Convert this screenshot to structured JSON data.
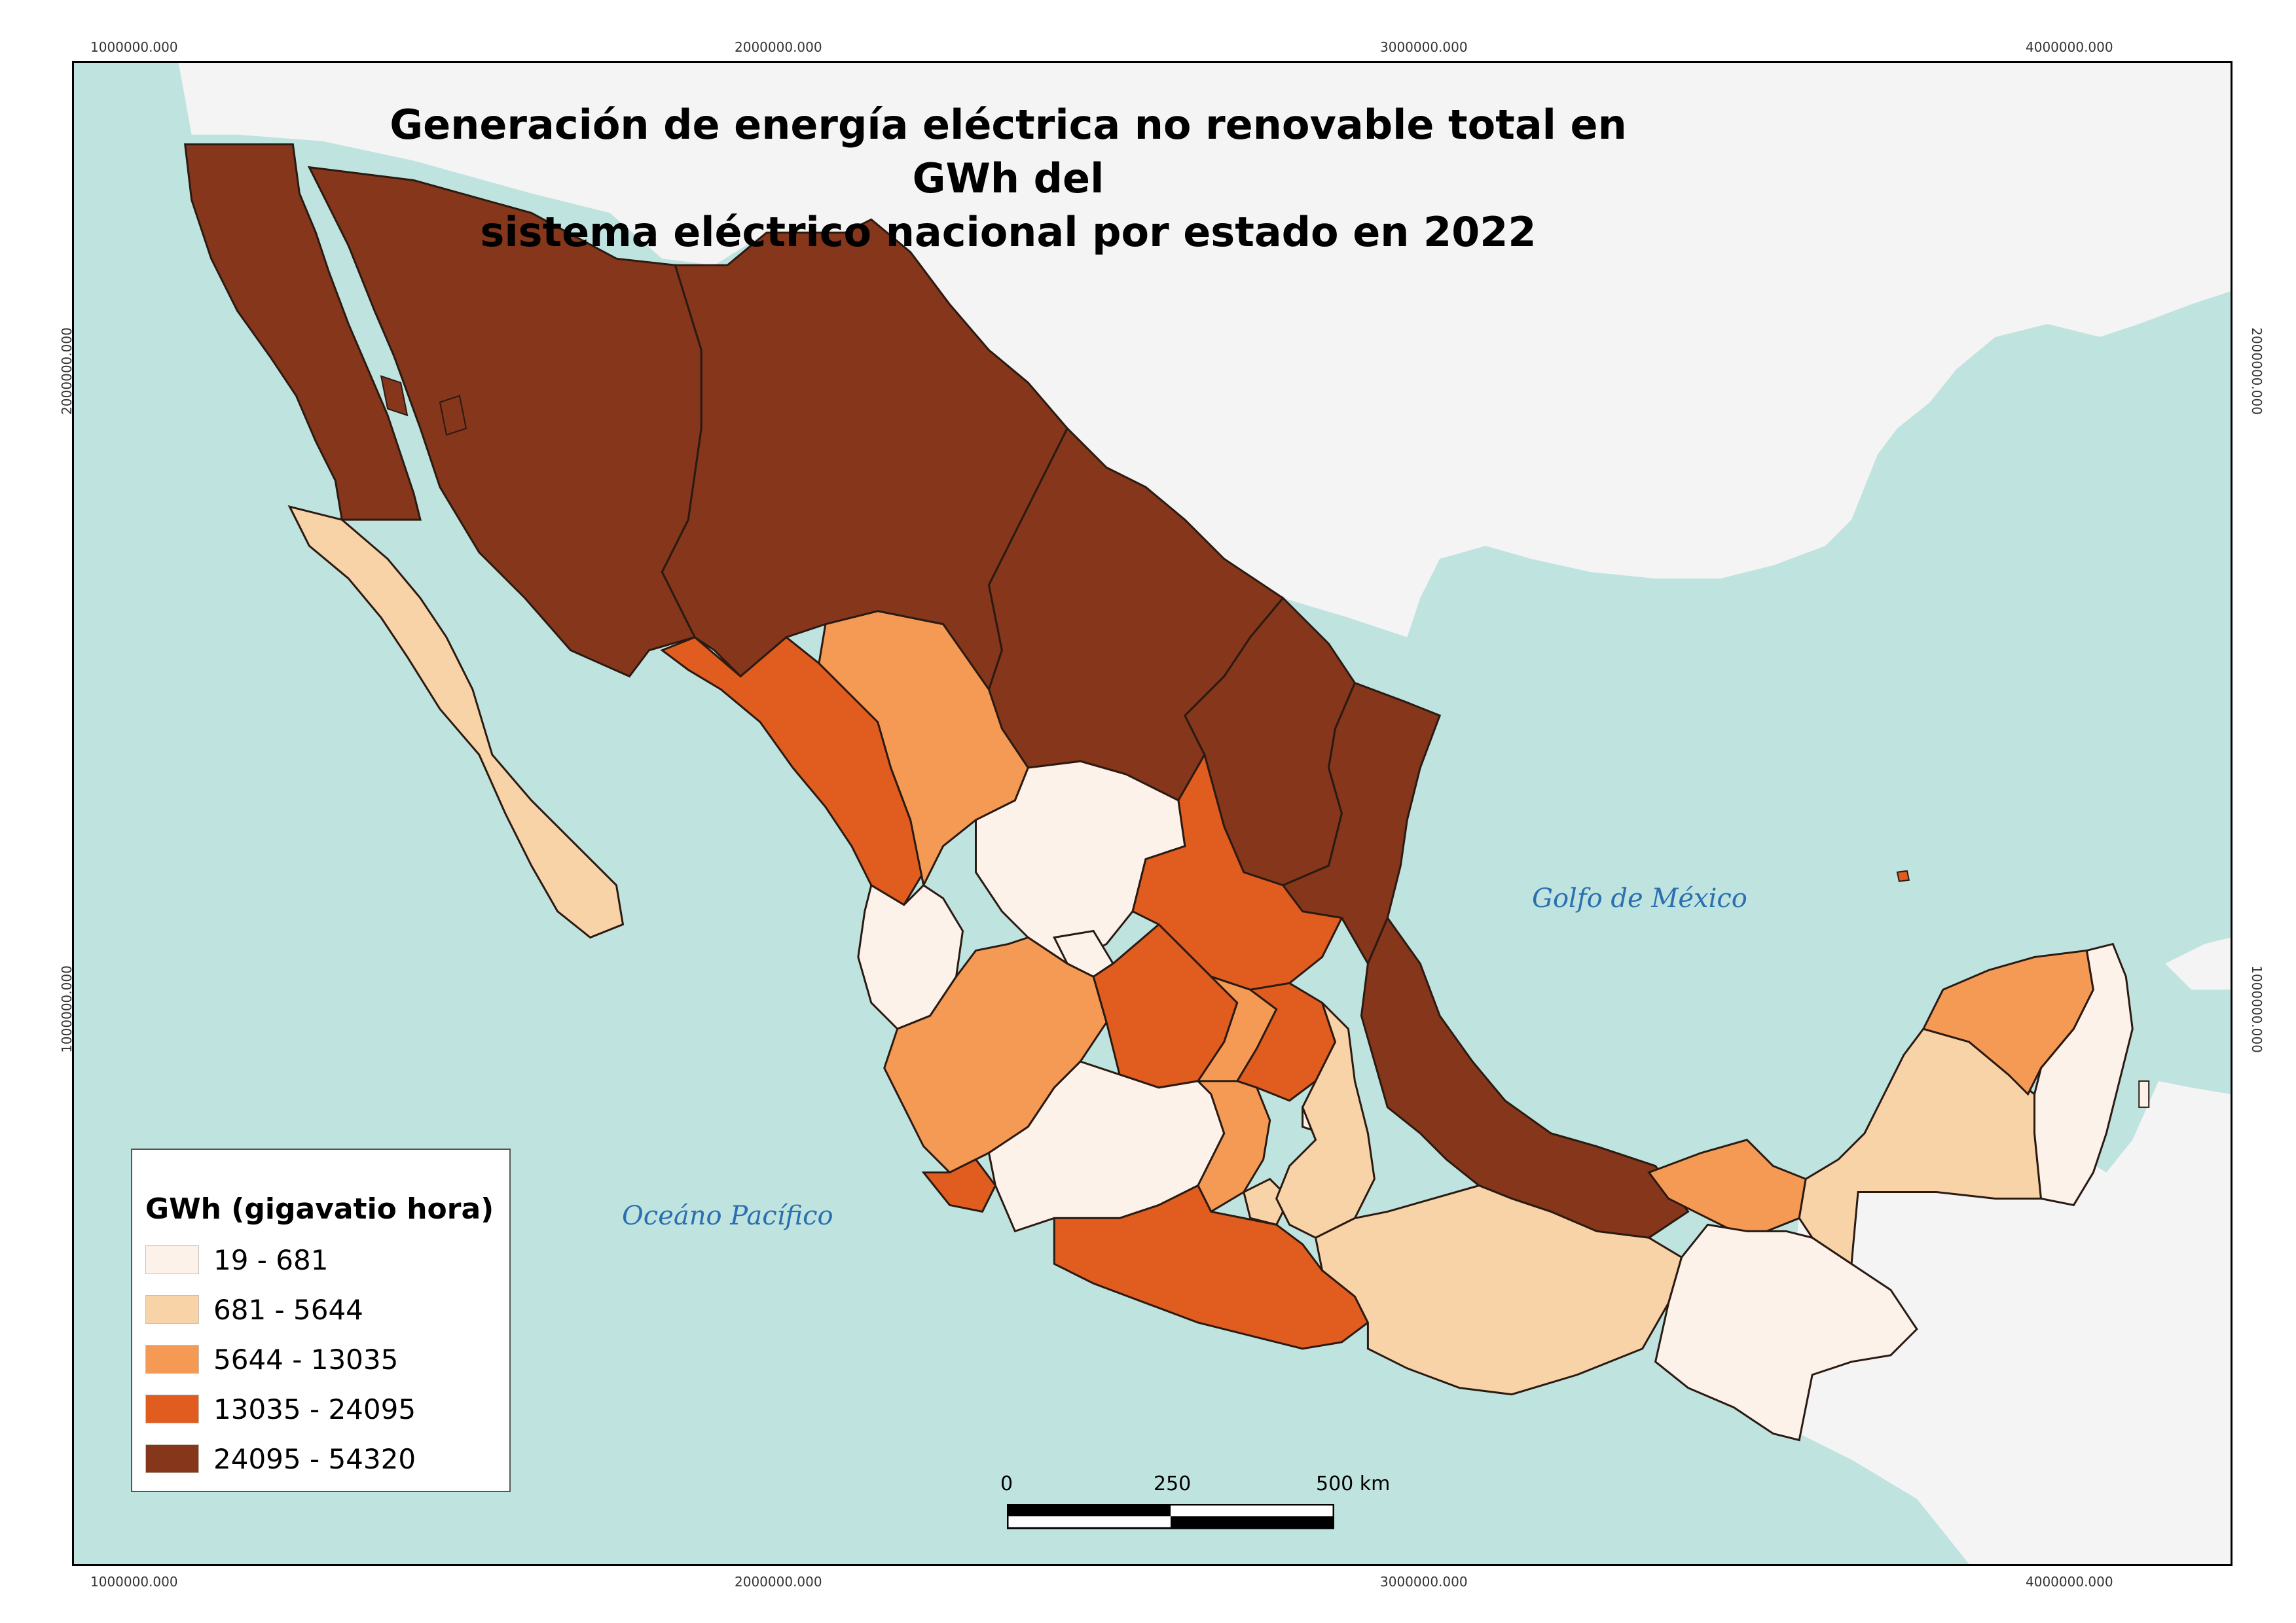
{
  "title": {
    "line1": "Generación de energía eléctrica no renovable total en GWh del",
    "line2": "sistema eléctrico nacional por estado en 2022"
  },
  "grid_ticks": {
    "top": [
      "1000000.000",
      "2000000.000",
      "3000000.000",
      "4000000.000"
    ],
    "bottom": [
      "1000000.000",
      "2000000.000",
      "3000000.000",
      "4000000.000"
    ],
    "left": [
      "2000000.000",
      "1000000.000"
    ],
    "right": [
      "2000000.000",
      "1000000.000"
    ]
  },
  "water_labels": {
    "gulf": "Golfo de México",
    "pacific": "Oceáno Pacífico"
  },
  "legend": {
    "title": "GWh (gigavatio hora)",
    "classes": [
      {
        "label": "19 - 681",
        "color": "#fcf2ea"
      },
      {
        "label": "681 - 5644",
        "color": "#f8d3a8"
      },
      {
        "label": "5644 - 13035",
        "color": "#f59a55"
      },
      {
        "label": "13035 - 24095",
        "color": "#e05c1f"
      },
      {
        "label": "24095 - 54320",
        "color": "#85361b"
      }
    ]
  },
  "scale_bar": {
    "labels": [
      "0",
      "250",
      "500 km"
    ]
  },
  "colors": {
    "ocean": "#bfe3df",
    "land_neighbor": "#f4f4f4",
    "border": "#3a2a22"
  }
}
